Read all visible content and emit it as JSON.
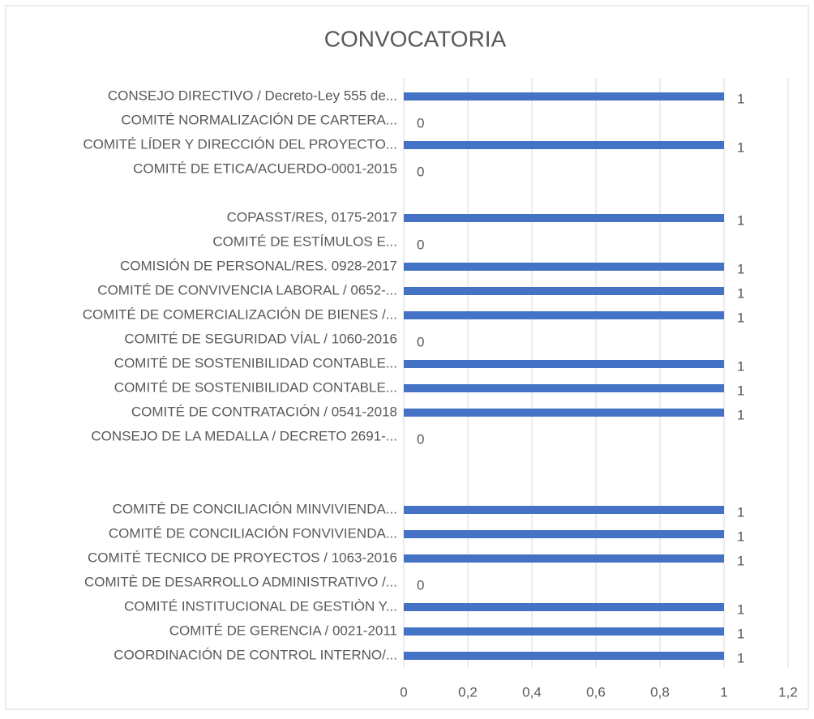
{
  "chart_data": {
    "type": "hbar",
    "title": "CONVOCATORIA",
    "categories": [
      "CONSEJO DIRECTIVO / Decreto-Ley 555 de...",
      "COMITÉ NORMALIZACIÓN DE CARTERA...",
      "COMITÉ LÍDER Y DIRECCIÓN DEL PROYECTO...",
      "COMITÉ DE ETICA/ACUERDO-0001-2015",
      null,
      "COPASST/RES, 0175-2017",
      "COMITÉ DE ESTÍMULOS E...",
      "COMISIÓN DE PERSONAL/RES. 0928-2017",
      "COMITÉ DE CONVIVENCIA LABORAL / 0652-...",
      "COMITÉ DE COMERCIALIZACIÓN DE BIENES /...",
      "COMITÉ DE SEGURIDAD VÍAL / 1060-2016",
      "COMITÉ DE SOSTENIBILIDAD CONTABLE...",
      "COMITÉ DE SOSTENIBILIDAD CONTABLE...",
      "COMITÉ DE CONTRATACIÓN / 0541-2018",
      "CONSEJO DE LA MEDALLA / DECRETO 2691-...",
      null,
      null,
      "COMITÉ DE CONCILIACIÓN MINVIVIENDA...",
      "COMITÉ DE CONCILIACIÓN FONVIVIENDA...",
      "COMITÉ TECNICO DE PROYECTOS / 1063-2016",
      "COMITÈ DE DESARROLLO ADMINISTRATIVO /...",
      "COMITÉ INSTITUCIONAL DE GESTIÒN Y...",
      "COMITÉ DE GERENCIA / 0021-2011",
      "COORDINACIÓN DE CONTROL INTERNO/..."
    ],
    "values": [
      1,
      0,
      1,
      0,
      null,
      1,
      0,
      1,
      1,
      1,
      0,
      1,
      1,
      1,
      0,
      null,
      null,
      1,
      1,
      1,
      0,
      1,
      1,
      1
    ],
    "color": "#4472c4",
    "xlim": [
      0,
      1.2
    ],
    "xticks": [
      0,
      {
        "value": 0.2,
        "label": "0,2"
      },
      {
        "value": 0.4,
        "label": "0,4"
      },
      {
        "value": 0.6,
        "label": "0,6"
      },
      {
        "value": 0.8,
        "label": "0,8"
      },
      1,
      {
        "value": 1.2,
        "label": "1,2"
      }
    ],
    "grid": true
  }
}
